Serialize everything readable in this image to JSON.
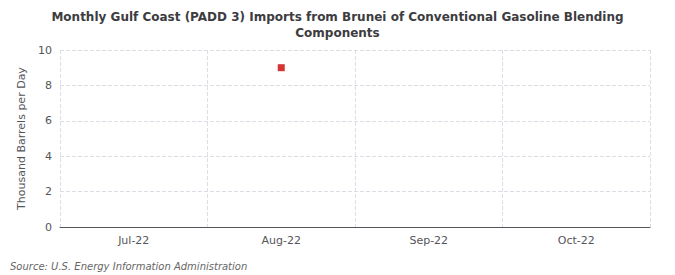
{
  "chart_data": {
    "type": "scatter",
    "title": "Monthly Gulf Coast (PADD 3) Imports from Brunei of Conventional Gasoline Blending\nComponents",
    "ylabel": "Thousand Barrels per Day",
    "source": "Source: U.S. Energy Information Administration",
    "categories": [
      "Jul-22",
      "Aug-22",
      "Sep-22",
      "Oct-22"
    ],
    "values": [
      null,
      9,
      null,
      null
    ],
    "color": "#cc0000",
    "marker": "square",
    "ylim": [
      0,
      10
    ],
    "yticks": [
      0,
      2,
      4,
      6,
      8,
      10
    ],
    "grid": true
  }
}
